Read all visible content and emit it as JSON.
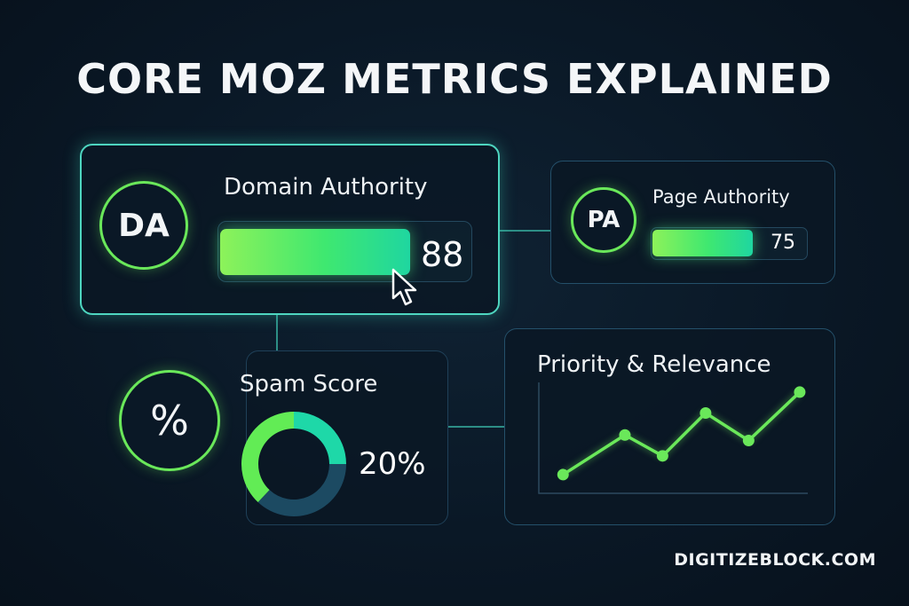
{
  "title": "CORE MOZ METRICS EXPLAINED",
  "domain_authority": {
    "badge": "DA",
    "label": "Domain Authority",
    "value": "88",
    "progress_percent": 88
  },
  "page_authority": {
    "badge": "PA",
    "label": "Page Authority",
    "value": "75",
    "progress_percent": 75
  },
  "spam_score": {
    "badge": "%",
    "label": "Spam Score",
    "value": "20%"
  },
  "priority": {
    "label": "Priority & Relevance"
  },
  "footer": "DIGITIZEBLOCK.COM",
  "colors": {
    "accent_green": "#6ae85a",
    "teal": "#1fd6a0",
    "dark_segment": "#1c4a62",
    "background": "#0a1826"
  },
  "chart_data": [
    {
      "type": "pie",
      "title": "Spam Score",
      "donut": true,
      "segments": [
        {
          "name": "teal",
          "value": 25,
          "color": "#1ed8a8"
        },
        {
          "name": "dark",
          "value": 37,
          "color": "#1c4a62"
        },
        {
          "name": "green",
          "value": 38,
          "color": "#62ec55"
        }
      ]
    },
    {
      "type": "line",
      "title": "Priority & Relevance",
      "x": [
        9,
        32,
        46,
        62,
        78,
        97
      ],
      "y": [
        17,
        53,
        34,
        73,
        48,
        92
      ],
      "xlim": [
        0,
        100
      ],
      "ylim": [
        0,
        100
      ],
      "grid": false
    }
  ]
}
